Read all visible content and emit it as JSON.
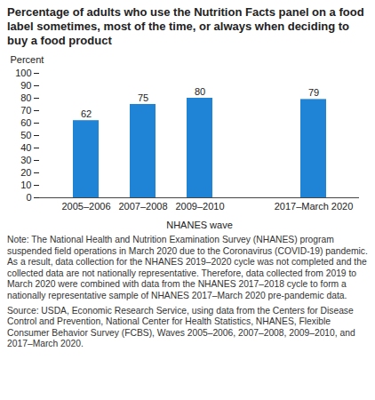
{
  "chart_data": {
    "type": "bar",
    "title": "Percentage of adults who use the Nutrition Facts panel on a food label sometimes, most of the time, or always when deciding to buy a food product",
    "y_label": "Percent",
    "x_label": "NHANES wave",
    "categories": [
      "2005–2006",
      "2007–2008",
      "2009–2010",
      null,
      "2017–March 2020"
    ],
    "values": [
      62,
      75,
      80,
      null,
      79
    ],
    "color": "#1f84d6",
    "ylim": [
      0,
      100
    ],
    "yticks": [
      0,
      10,
      20,
      30,
      40,
      50,
      60,
      70,
      80,
      90,
      100
    ],
    "grid": false,
    "data_labels": true,
    "note": "Note: The National Health and Nutrition Examination Survey (NHANES) program suspended field operations in March 2020 due to the Coronavirus (COVID-19) pandemic. As a result, data collection for the NHANES 2019–2020 cycle was not completed and the collected data are not nationally representative. Therefore, data collected from 2019 to March 2020 were combined with data from the NHANES 2017–2018 cycle to form a nationally representative sample of NHANES 2017–March 2020 pre-pandemic data.",
    "source": "Source: USDA, Economic Research Service, using data from the Centers for Disease Control and Prevention, National Center for Health Statistics, NHANES, Flexible Consumer Behavior Survey (FCBS), Waves 2005–2006, 2007–2008, 2009–2010, and 2017–March 2020."
  }
}
